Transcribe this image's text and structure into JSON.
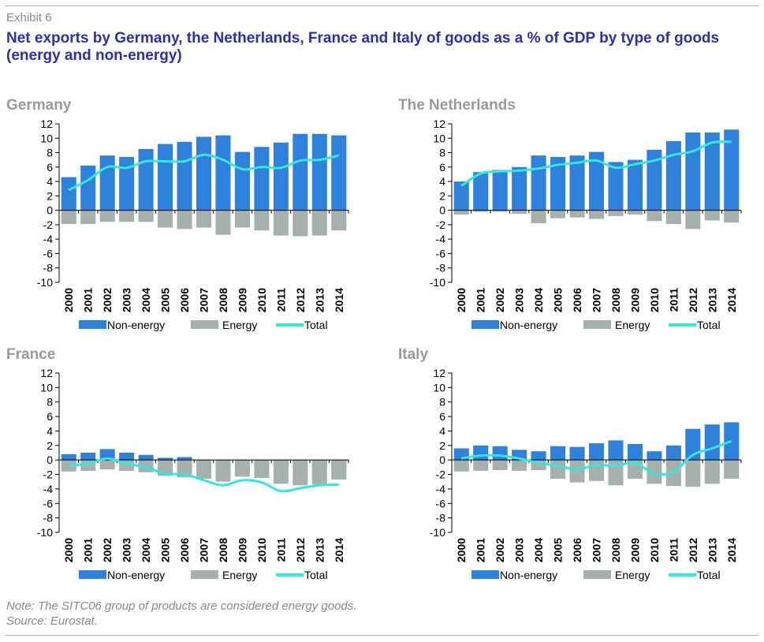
{
  "header": {
    "exhibit": "Exhibit 6",
    "title": "Net exports by Germany, the Netherlands, France and Italy of goods as a % of GDP by type of goods (energy and non-energy)"
  },
  "footer": {
    "note": "Note: The SITC06 group of products are considered energy goods.",
    "source": "Source: Eurostat."
  },
  "colors": {
    "non_energy": "#2f82dc",
    "energy": "#a6b1ae",
    "total": "#34e6e0",
    "panel_title": "#9a9a9a",
    "title": "#2a2fb6"
  },
  "chart_data": [
    {
      "type": "bar",
      "title": "Germany",
      "categories": [
        "2000",
        "2001",
        "2002",
        "2003",
        "2004",
        "2005",
        "2006",
        "2007",
        "2008",
        "2009",
        "2010",
        "2011",
        "2012",
        "2013",
        "2014"
      ],
      "ylim": [
        -10,
        12
      ],
      "yticks": [
        "12",
        "10",
        "8",
        "6",
        "4",
        "2",
        "0",
        "-2",
        "-4",
        "-6",
        "-8",
        "-10"
      ],
      "series": [
        {
          "name": "Non-energy",
          "kind": "bar",
          "values": [
            4.6,
            6.2,
            7.6,
            7.4,
            8.5,
            9.2,
            9.5,
            10.2,
            10.4,
            8.1,
            8.8,
            9.4,
            10.6,
            10.6,
            10.4
          ]
        },
        {
          "name": "Energy",
          "kind": "bar",
          "values": [
            -1.9,
            -1.9,
            -1.6,
            -1.6,
            -1.6,
            -2.4,
            -2.6,
            -2.4,
            -3.4,
            -2.4,
            -2.8,
            -3.5,
            -3.6,
            -3.5,
            -2.8
          ]
        },
        {
          "name": "Total",
          "kind": "line",
          "values": [
            2.8,
            4.2,
            6.0,
            5.9,
            6.8,
            6.8,
            6.8,
            7.7,
            7.0,
            5.7,
            6.0,
            5.9,
            6.9,
            7.0,
            7.6
          ]
        }
      ]
    },
    {
      "type": "bar",
      "title": "The Netherlands",
      "categories": [
        "2000",
        "2001",
        "2002",
        "2003",
        "2004",
        "2005",
        "2006",
        "2007",
        "2008",
        "2009",
        "2010",
        "2011",
        "2012",
        "2013",
        "2014"
      ],
      "ylim": [
        -10,
        12
      ],
      "yticks": [
        "12",
        "10",
        "8",
        "6",
        "4",
        "2",
        "0",
        "-2",
        "-4",
        "-6",
        "-8",
        "-10"
      ],
      "series": [
        {
          "name": "Non-energy",
          "kind": "bar",
          "values": [
            4.0,
            5.3,
            5.6,
            6.0,
            7.6,
            7.4,
            7.6,
            8.1,
            6.7,
            7.0,
            8.4,
            9.6,
            10.8,
            10.8,
            11.2
          ]
        },
        {
          "name": "Energy",
          "kind": "bar",
          "values": [
            -0.6,
            -0.2,
            -0.2,
            -0.5,
            -1.8,
            -1.1,
            -1.0,
            -1.2,
            -0.8,
            -0.6,
            -1.5,
            -1.9,
            -2.6,
            -1.4,
            -1.7
          ]
        },
        {
          "name": "Total",
          "kind": "line",
          "values": [
            3.4,
            5.1,
            5.4,
            5.5,
            5.8,
            6.3,
            6.6,
            6.9,
            5.9,
            6.4,
            6.9,
            7.7,
            8.2,
            9.4,
            9.5
          ]
        }
      ]
    },
    {
      "type": "bar",
      "title": "France",
      "categories": [
        "2000",
        "2001",
        "2002",
        "2003",
        "2004",
        "2005",
        "2006",
        "2007",
        "2008",
        "2009",
        "2010",
        "2011",
        "2012",
        "2013",
        "2014"
      ],
      "ylim": [
        -10,
        12
      ],
      "yticks": [
        "12",
        "10",
        "8",
        "6",
        "4",
        "2",
        "0",
        "-2",
        "-4",
        "-6",
        "-8",
        "-10"
      ],
      "series": [
        {
          "name": "Non-energy",
          "kind": "bar",
          "values": [
            0.8,
            1.0,
            1.5,
            1.0,
            0.7,
            0.3,
            0.4,
            -0.2,
            -0.5,
            -0.5,
            -0.6,
            -0.8,
            -0.7,
            -0.5,
            -0.8
          ]
        },
        {
          "name": "Energy",
          "kind": "bar",
          "values": [
            -1.6,
            -1.5,
            -1.3,
            -1.5,
            -1.7,
            -2.2,
            -2.4,
            -2.6,
            -3.0,
            -2.3,
            -2.5,
            -3.3,
            -3.5,
            -3.4,
            -2.7
          ]
        },
        {
          "name": "Total",
          "kind": "line",
          "values": [
            -0.8,
            -0.5,
            0.2,
            -0.5,
            -1.0,
            -1.9,
            -2.0,
            -2.8,
            -3.5,
            -2.8,
            -3.1,
            -4.3,
            -3.9,
            -3.5,
            -3.4
          ]
        }
      ]
    },
    {
      "type": "bar",
      "title": "Italy",
      "categories": [
        "2000",
        "2001",
        "2002",
        "2003",
        "2004",
        "2005",
        "2006",
        "2007",
        "2008",
        "2009",
        "2010",
        "2011",
        "2012",
        "2013",
        "2014"
      ],
      "ylim": [
        -10,
        12
      ],
      "yticks": [
        "12",
        "10",
        "8",
        "6",
        "4",
        "2",
        "0",
        "-2",
        "-4",
        "-6",
        "-8",
        "-10"
      ],
      "series": [
        {
          "name": "Non-energy",
          "kind": "bar",
          "values": [
            1.6,
            2.0,
            1.9,
            1.4,
            1.2,
            1.9,
            1.8,
            2.3,
            2.7,
            2.2,
            1.2,
            2.0,
            4.3,
            4.9,
            5.2
          ]
        },
        {
          "name": "Energy",
          "kind": "bar",
          "values": [
            -1.6,
            -1.5,
            -1.4,
            -1.5,
            -1.4,
            -2.6,
            -3.1,
            -2.9,
            -3.5,
            -2.6,
            -3.3,
            -3.6,
            -3.7,
            -3.3,
            -2.6
          ]
        },
        {
          "name": "Total",
          "kind": "line",
          "values": [
            0.2,
            0.6,
            0.6,
            0.2,
            -0.4,
            -0.8,
            -1.3,
            -0.7,
            -0.8,
            -0.4,
            -1.9,
            -1.6,
            0.7,
            1.6,
            2.6
          ]
        }
      ]
    }
  ]
}
